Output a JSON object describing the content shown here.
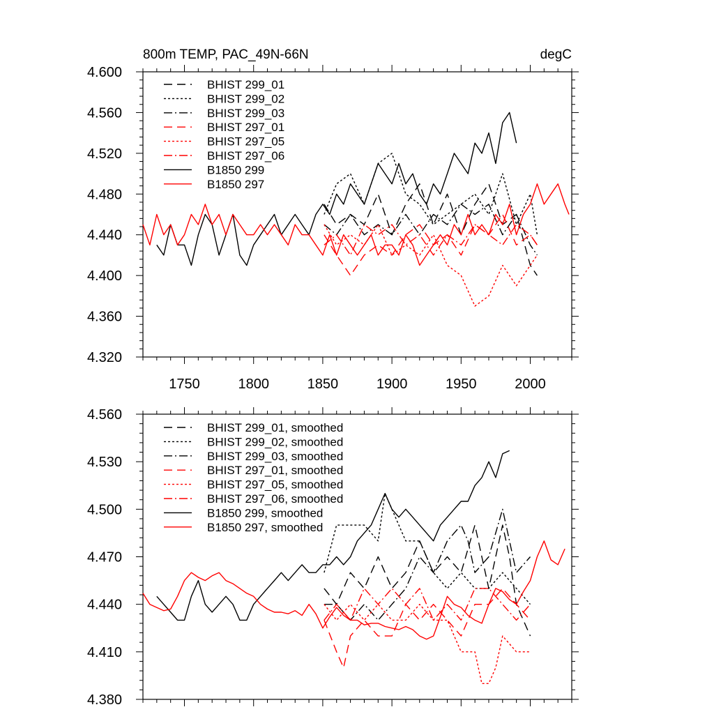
{
  "chart_data": [
    {
      "type": "line",
      "title": "800m TEMP, PAC_49N-66N",
      "units": "degC",
      "xlabel": "",
      "ylabel": "",
      "xlim": [
        1720,
        2030
      ],
      "ylim": [
        4.32,
        4.6
      ],
      "xticks": [
        1750,
        1800,
        1850,
        1900,
        1950,
        2000
      ],
      "yticks": [
        "4.320",
        "4.360",
        "4.400",
        "4.440",
        "4.480",
        "4.520",
        "4.560",
        "4.600"
      ],
      "legend_position": "top-left",
      "grid": false,
      "series": [
        {
          "name": "BHIST 299_01",
          "color": "#000000",
          "dash": "dashed",
          "x": [
            1851,
            1860,
            1870,
            1880,
            1890,
            1900,
            1910,
            1920,
            1930,
            1940,
            1950,
            1960,
            1970,
            1980,
            1990,
            2000,
            2005
          ],
          "y": [
            4.47,
            4.45,
            4.46,
            4.45,
            4.48,
            4.44,
            4.47,
            4.49,
            4.45,
            4.48,
            4.44,
            4.47,
            4.49,
            4.45,
            4.46,
            4.41,
            4.4
          ]
        },
        {
          "name": "BHIST 299_02",
          "color": "#000000",
          "dash": "dotted",
          "x": [
            1851,
            1860,
            1870,
            1880,
            1890,
            1900,
            1910,
            1920,
            1930,
            1940,
            1950,
            1960,
            1970,
            1980,
            1990,
            2000,
            2005
          ],
          "y": [
            4.46,
            4.49,
            4.5,
            4.47,
            4.51,
            4.52,
            4.48,
            4.47,
            4.45,
            4.46,
            4.47,
            4.48,
            4.46,
            4.5,
            4.45,
            4.48,
            4.44
          ]
        },
        {
          "name": "BHIST 299_03",
          "color": "#000000",
          "dash": "dashdot",
          "x": [
            1851,
            1860,
            1870,
            1880,
            1890,
            1900,
            1910,
            1920,
            1930,
            1940,
            1950,
            1960,
            1970,
            1980,
            1990,
            2000,
            2005
          ],
          "y": [
            4.45,
            4.44,
            4.46,
            4.44,
            4.45,
            4.44,
            4.46,
            4.44,
            4.46,
            4.45,
            4.47,
            4.46,
            4.47,
            4.44,
            4.46,
            4.43,
            4.42
          ]
        },
        {
          "name": "BHIST 297_01",
          "color": "#ff0000",
          "dash": "dashed",
          "x": [
            1851,
            1860,
            1870,
            1880,
            1890,
            1900,
            1910,
            1920,
            1930,
            1940,
            1950,
            1960,
            1970,
            1980,
            1990,
            2000,
            2005
          ],
          "y": [
            4.44,
            4.42,
            4.4,
            4.42,
            4.43,
            4.42,
            4.44,
            4.45,
            4.43,
            4.44,
            4.42,
            4.45,
            4.44,
            4.46,
            4.43,
            4.44,
            4.43
          ]
        },
        {
          "name": "BHIST 297_05",
          "color": "#ff0000",
          "dash": "dotted",
          "x": [
            1851,
            1860,
            1870,
            1880,
            1890,
            1900,
            1910,
            1920,
            1930,
            1940,
            1950,
            1960,
            1970,
            1980,
            1990,
            2000,
            2005
          ],
          "y": [
            4.45,
            4.43,
            4.44,
            4.43,
            4.45,
            4.42,
            4.43,
            4.42,
            4.44,
            4.41,
            4.4,
            4.37,
            4.38,
            4.41,
            4.39,
            4.41,
            4.42
          ]
        },
        {
          "name": "BHIST 297_06",
          "color": "#ff0000",
          "dash": "dashdot",
          "x": [
            1851,
            1860,
            1870,
            1880,
            1890,
            1900,
            1910,
            1920,
            1930,
            1940,
            1950,
            1960,
            1970,
            1980,
            1990,
            2000,
            2005
          ],
          "y": [
            4.43,
            4.44,
            4.42,
            4.45,
            4.44,
            4.45,
            4.43,
            4.44,
            4.42,
            4.44,
            4.43,
            4.45,
            4.44,
            4.43,
            4.45,
            4.44,
            4.43
          ]
        },
        {
          "name": "B1850 299",
          "color": "#000000",
          "dash": "solid",
          "x": [
            1730,
            1735,
            1740,
            1745,
            1750,
            1755,
            1760,
            1765,
            1770,
            1775,
            1780,
            1785,
            1790,
            1795,
            1800,
            1805,
            1810,
            1815,
            1820,
            1825,
            1830,
            1835,
            1840,
            1845,
            1850,
            1855,
            1860,
            1865,
            1870,
            1875,
            1880,
            1885,
            1890,
            1895,
            1900,
            1905,
            1910,
            1915,
            1920,
            1925,
            1930,
            1935,
            1940,
            1945,
            1950,
            1955,
            1960,
            1965,
            1970,
            1975,
            1980,
            1985,
            1990
          ],
          "y": [
            4.43,
            4.42,
            4.45,
            4.43,
            4.43,
            4.41,
            4.44,
            4.46,
            4.45,
            4.42,
            4.44,
            4.46,
            4.42,
            4.41,
            4.43,
            4.44,
            4.45,
            4.46,
            4.44,
            4.45,
            4.46,
            4.45,
            4.44,
            4.46,
            4.47,
            4.46,
            4.48,
            4.47,
            4.49,
            4.48,
            4.47,
            4.49,
            4.51,
            4.5,
            4.49,
            4.51,
            4.49,
            4.5,
            4.48,
            4.47,
            4.49,
            4.48,
            4.5,
            4.52,
            4.51,
            4.5,
            4.53,
            4.52,
            4.54,
            4.51,
            4.55,
            4.56,
            4.53
          ]
        },
        {
          "name": "B1850 297",
          "color": "#ff0000",
          "dash": "solid",
          "x": [
            1720,
            1725,
            1730,
            1735,
            1740,
            1745,
            1750,
            1755,
            1760,
            1765,
            1770,
            1775,
            1780,
            1785,
            1790,
            1795,
            1800,
            1805,
            1810,
            1815,
            1820,
            1825,
            1830,
            1835,
            1840,
            1845,
            1850,
            1855,
            1860,
            1865,
            1870,
            1875,
            1880,
            1885,
            1890,
            1895,
            1900,
            1905,
            1910,
            1915,
            1920,
            1925,
            1930,
            1935,
            1940,
            1945,
            1950,
            1955,
            1960,
            1965,
            1970,
            1975,
            1980,
            1985,
            1990,
            1995,
            2000,
            2005,
            2010,
            2015,
            2020,
            2025,
            2028
          ],
          "y": [
            4.45,
            4.43,
            4.46,
            4.44,
            4.45,
            4.43,
            4.44,
            4.46,
            4.45,
            4.47,
            4.45,
            4.46,
            4.44,
            4.46,
            4.45,
            4.44,
            4.44,
            4.45,
            4.44,
            4.45,
            4.44,
            4.43,
            4.45,
            4.44,
            4.44,
            4.43,
            4.42,
            4.44,
            4.42,
            4.44,
            4.43,
            4.42,
            4.43,
            4.44,
            4.42,
            4.43,
            4.43,
            4.42,
            4.44,
            4.43,
            4.41,
            4.42,
            4.43,
            4.44,
            4.43,
            4.45,
            4.44,
            4.46,
            4.44,
            4.45,
            4.44,
            4.46,
            4.45,
            4.47,
            4.44,
            4.46,
            4.47,
            4.49,
            4.47,
            4.48,
            4.49,
            4.47,
            4.46
          ]
        }
      ]
    },
    {
      "type": "line",
      "title": "",
      "xlabel": "",
      "ylabel": "",
      "xlim": [
        1720,
        2030
      ],
      "ylim": [
        4.38,
        4.56
      ],
      "yticks": [
        "4.380",
        "4.410",
        "4.440",
        "4.470",
        "4.500",
        "4.530",
        "4.560"
      ],
      "legend_position": "top-left",
      "grid": false,
      "series": [
        {
          "name": "BHIST 299_01, smoothed",
          "color": "#000000",
          "dash": "dashed",
          "x": [
            1851,
            1860,
            1870,
            1880,
            1890,
            1900,
            1910,
            1920,
            1930,
            1940,
            1950,
            1960,
            1965,
            1970,
            1980,
            1985,
            1990,
            2000
          ],
          "y": [
            4.45,
            4.44,
            4.46,
            4.45,
            4.47,
            4.45,
            4.46,
            4.48,
            4.46,
            4.47,
            4.46,
            4.49,
            4.47,
            4.45,
            4.49,
            4.47,
            4.44,
            4.42
          ]
        },
        {
          "name": "BHIST 299_02, smoothed",
          "color": "#000000",
          "dash": "dotted",
          "x": [
            1851,
            1860,
            1870,
            1880,
            1890,
            1895,
            1900,
            1910,
            1920,
            1930,
            1940,
            1950,
            1960,
            1970,
            1980,
            1990,
            2000
          ],
          "y": [
            4.46,
            4.49,
            4.49,
            4.49,
            4.48,
            4.51,
            4.5,
            4.48,
            4.48,
            4.46,
            4.45,
            4.46,
            4.45,
            4.45,
            4.46,
            4.45,
            4.44
          ]
        },
        {
          "name": "BHIST 299_03, smoothed",
          "color": "#000000",
          "dash": "dashdot",
          "x": [
            1851,
            1860,
            1870,
            1880,
            1890,
            1900,
            1910,
            1920,
            1930,
            1940,
            1950,
            1955,
            1960,
            1970,
            1980,
            1985,
            1990,
            2000
          ],
          "y": [
            4.44,
            4.44,
            4.43,
            4.44,
            4.43,
            4.44,
            4.45,
            4.47,
            4.46,
            4.48,
            4.49,
            4.48,
            4.46,
            4.47,
            4.5,
            4.48,
            4.46,
            4.47
          ]
        },
        {
          "name": "BHIST 297_01, smoothed",
          "color": "#ff0000",
          "dash": "dashed",
          "x": [
            1851,
            1860,
            1865,
            1870,
            1880,
            1890,
            1900,
            1910,
            1920,
            1930,
            1940,
            1950,
            1960,
            1970,
            1980,
            1990,
            2000
          ],
          "y": [
            4.43,
            4.41,
            4.4,
            4.42,
            4.43,
            4.42,
            4.42,
            4.44,
            4.43,
            4.44,
            4.43,
            4.42,
            4.44,
            4.44,
            4.45,
            4.44,
            4.43
          ]
        },
        {
          "name": "BHIST 297_05, smoothed",
          "color": "#ff0000",
          "dash": "dotted",
          "x": [
            1851,
            1860,
            1870,
            1880,
            1890,
            1900,
            1910,
            1920,
            1930,
            1940,
            1950,
            1960,
            1965,
            1970,
            1975,
            1980,
            1990,
            2000
          ],
          "y": [
            4.44,
            4.43,
            4.44,
            4.43,
            4.44,
            4.43,
            4.43,
            4.44,
            4.43,
            4.43,
            4.41,
            4.41,
            4.39,
            4.39,
            4.4,
            4.42,
            4.41,
            4.41
          ]
        },
        {
          "name": "BHIST 297_06, smoothed",
          "color": "#ff0000",
          "dash": "dashdot",
          "x": [
            1851,
            1860,
            1870,
            1880,
            1890,
            1900,
            1910,
            1920,
            1930,
            1940,
            1950,
            1960,
            1970,
            1980,
            1990,
            2000
          ],
          "y": [
            4.43,
            4.44,
            4.43,
            4.45,
            4.44,
            4.45,
            4.44,
            4.45,
            4.43,
            4.44,
            4.43,
            4.45,
            4.45,
            4.44,
            4.43,
            4.44
          ]
        },
        {
          "name": "B1850 299, smoothed",
          "color": "#000000",
          "dash": "solid",
          "x": [
            1730,
            1735,
            1740,
            1745,
            1750,
            1755,
            1760,
            1765,
            1770,
            1775,
            1780,
            1785,
            1790,
            1795,
            1800,
            1805,
            1810,
            1815,
            1820,
            1825,
            1830,
            1835,
            1840,
            1845,
            1850,
            1855,
            1860,
            1865,
            1870,
            1875,
            1880,
            1885,
            1890,
            1895,
            1900,
            1905,
            1910,
            1915,
            1920,
            1925,
            1930,
            1935,
            1940,
            1945,
            1950,
            1955,
            1960,
            1965,
            1970,
            1975,
            1980,
            1985
          ],
          "y": [
            4.445,
            4.44,
            4.435,
            4.43,
            4.43,
            4.445,
            4.455,
            4.44,
            4.435,
            4.44,
            4.445,
            4.44,
            4.43,
            4.43,
            4.44,
            4.445,
            4.45,
            4.455,
            4.46,
            4.455,
            4.46,
            4.465,
            4.46,
            4.46,
            4.465,
            4.465,
            4.47,
            4.465,
            4.47,
            4.48,
            4.485,
            4.49,
            4.5,
            4.51,
            4.5,
            4.495,
            4.5,
            4.495,
            4.49,
            4.485,
            4.48,
            4.49,
            4.495,
            4.5,
            4.505,
            4.505,
            4.515,
            4.52,
            4.53,
            4.52,
            4.535,
            4.537
          ]
        },
        {
          "name": "B1850 297, smoothed",
          "color": "#ff0000",
          "dash": "solid",
          "x": [
            1720,
            1725,
            1730,
            1735,
            1740,
            1745,
            1750,
            1755,
            1760,
            1765,
            1770,
            1775,
            1780,
            1785,
            1790,
            1795,
            1800,
            1805,
            1810,
            1815,
            1820,
            1825,
            1830,
            1835,
            1840,
            1845,
            1850,
            1855,
            1860,
            1865,
            1870,
            1875,
            1880,
            1885,
            1890,
            1895,
            1900,
            1905,
            1910,
            1915,
            1920,
            1925,
            1930,
            1935,
            1940,
            1945,
            1950,
            1955,
            1960,
            1965,
            1970,
            1975,
            1980,
            1985,
            1990,
            1995,
            2000,
            2005,
            2010,
            2015,
            2020,
            2025
          ],
          "y": [
            4.447,
            4.44,
            4.438,
            4.436,
            4.437,
            4.445,
            4.455,
            4.46,
            4.457,
            4.455,
            4.458,
            4.46,
            4.455,
            4.453,
            4.45,
            4.447,
            4.445,
            4.44,
            4.437,
            4.435,
            4.435,
            4.434,
            4.436,
            4.433,
            4.44,
            4.434,
            4.425,
            4.432,
            4.438,
            4.433,
            4.43,
            4.43,
            4.427,
            4.428,
            4.428,
            4.426,
            4.425,
            4.424,
            4.426,
            4.424,
            4.42,
            4.418,
            4.42,
            4.432,
            4.445,
            4.44,
            4.438,
            4.433,
            4.43,
            4.428,
            4.44,
            4.45,
            4.448,
            4.443,
            4.44,
            4.448,
            4.455,
            4.47,
            4.48,
            4.468,
            4.465,
            4.475
          ]
        }
      ]
    }
  ]
}
